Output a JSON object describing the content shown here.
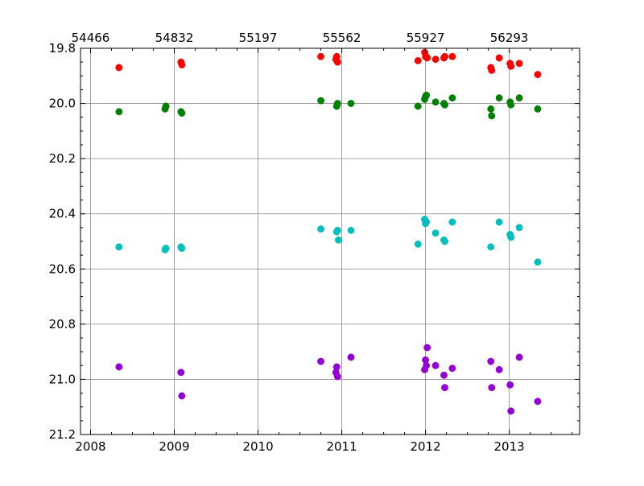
{
  "chart_data": {
    "type": "scatter",
    "title": "",
    "xlabel": "",
    "ylabel": "",
    "xlim": [
      2007.88,
      2013.84
    ],
    "ylim": [
      21.2,
      19.8
    ],
    "y_inverted": true,
    "grid": true,
    "x_ticks": [
      "2008",
      "2009",
      "2010",
      "2011",
      "2012",
      "2013"
    ],
    "x_tick_values": [
      2008,
      2009,
      2010,
      2011,
      2012,
      2013
    ],
    "top_ticks": [
      "54466",
      "54832",
      "55197",
      "55562",
      "55927",
      "56293"
    ],
    "top_tick_values": [
      2008,
      2009,
      2010,
      2011,
      2012,
      2013
    ],
    "y_ticks": [
      "19.8",
      "20.0",
      "20.2",
      "20.4",
      "20.6",
      "20.8",
      "21.0",
      "21.2"
    ],
    "y_tick_values": [
      19.8,
      20.0,
      20.2,
      20.4,
      20.6,
      20.8,
      21.0,
      21.2
    ],
    "series": [
      {
        "color": "#ff0000",
        "points": [
          [
            2008.34,
            19.87
          ],
          [
            2009.08,
            19.85
          ],
          [
            2009.09,
            19.86
          ],
          [
            2010.75,
            19.83
          ],
          [
            2010.93,
            19.84
          ],
          [
            2010.94,
            19.83
          ],
          [
            2010.95,
            19.85
          ],
          [
            2011.91,
            19.845
          ],
          [
            2011.99,
            19.815
          ],
          [
            2012.0,
            19.83
          ],
          [
            2012.01,
            19.83
          ],
          [
            2012.02,
            19.835
          ],
          [
            2012.12,
            19.84
          ],
          [
            2012.22,
            19.835
          ],
          [
            2012.23,
            19.83
          ],
          [
            2012.32,
            19.83
          ],
          [
            2012.78,
            19.87
          ],
          [
            2012.79,
            19.88
          ],
          [
            2012.88,
            19.835
          ],
          [
            2013.01,
            19.855
          ],
          [
            2013.02,
            19.865
          ],
          [
            2013.12,
            19.855
          ],
          [
            2013.34,
            19.895
          ]
        ]
      },
      {
        "color": "#008000",
        "points": [
          [
            2008.34,
            20.03
          ],
          [
            2008.89,
            20.02
          ],
          [
            2008.9,
            20.01
          ],
          [
            2009.08,
            20.03
          ],
          [
            2009.09,
            20.035
          ],
          [
            2010.75,
            19.99
          ],
          [
            2010.94,
            20.01
          ],
          [
            2010.95,
            20.0
          ],
          [
            2011.11,
            20.0
          ],
          [
            2011.91,
            20.01
          ],
          [
            2011.99,
            19.985
          ],
          [
            2012.0,
            19.975
          ],
          [
            2012.01,
            19.97
          ],
          [
            2012.12,
            19.995
          ],
          [
            2012.22,
            20.0
          ],
          [
            2012.23,
            20.005
          ],
          [
            2012.32,
            19.98
          ],
          [
            2012.78,
            20.02
          ],
          [
            2012.79,
            20.045
          ],
          [
            2012.88,
            19.98
          ],
          [
            2013.01,
            19.995
          ],
          [
            2013.02,
            20.005
          ],
          [
            2013.12,
            19.98
          ],
          [
            2013.34,
            20.02
          ]
        ]
      },
      {
        "color": "#00bfbf",
        "points": [
          [
            2008.34,
            20.52
          ],
          [
            2008.89,
            20.53
          ],
          [
            2008.9,
            20.525
          ],
          [
            2009.08,
            20.52
          ],
          [
            2009.09,
            20.525
          ],
          [
            2010.75,
            20.455
          ],
          [
            2010.94,
            20.465
          ],
          [
            2010.95,
            20.46
          ],
          [
            2010.96,
            20.495
          ],
          [
            2011.11,
            20.46
          ],
          [
            2011.91,
            20.51
          ],
          [
            2011.99,
            20.42
          ],
          [
            2012.0,
            20.435
          ],
          [
            2012.01,
            20.43
          ],
          [
            2012.12,
            20.47
          ],
          [
            2012.22,
            20.495
          ],
          [
            2012.23,
            20.5
          ],
          [
            2012.32,
            20.43
          ],
          [
            2012.78,
            20.52
          ],
          [
            2012.88,
            20.43
          ],
          [
            2013.01,
            20.475
          ],
          [
            2013.02,
            20.485
          ],
          [
            2013.12,
            20.45
          ],
          [
            2013.34,
            20.575
          ]
        ]
      },
      {
        "color": "#9400d3",
        "points": [
          [
            2008.34,
            20.955
          ],
          [
            2009.08,
            20.975
          ],
          [
            2009.09,
            21.06
          ],
          [
            2010.75,
            20.935
          ],
          [
            2010.93,
            20.975
          ],
          [
            2010.94,
            20.955
          ],
          [
            2010.95,
            20.99
          ],
          [
            2011.11,
            20.92
          ],
          [
            2011.99,
            20.965
          ],
          [
            2012.0,
            20.93
          ],
          [
            2012.01,
            20.95
          ],
          [
            2012.02,
            20.885
          ],
          [
            2012.12,
            20.95
          ],
          [
            2012.22,
            20.985
          ],
          [
            2012.23,
            21.03
          ],
          [
            2012.32,
            20.96
          ],
          [
            2012.78,
            20.935
          ],
          [
            2012.79,
            21.03
          ],
          [
            2012.88,
            20.965
          ],
          [
            2013.01,
            21.02
          ],
          [
            2013.02,
            21.115
          ],
          [
            2013.12,
            20.92
          ],
          [
            2013.34,
            21.08
          ]
        ]
      }
    ]
  }
}
